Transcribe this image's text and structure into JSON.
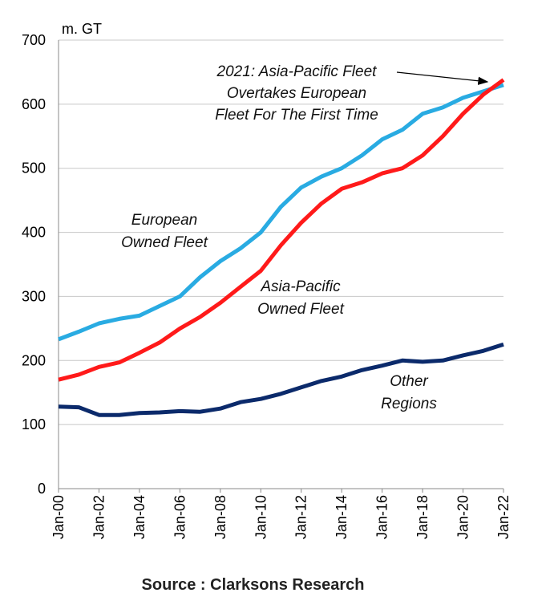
{
  "chart_data": {
    "type": "line",
    "ylabel": "m. GT",
    "ylim": [
      0,
      700
    ],
    "yticks": [
      0,
      100,
      200,
      300,
      400,
      500,
      600,
      700
    ],
    "xlabels": [
      "Jan-00",
      "Jan-02",
      "Jan-04",
      "Jan-06",
      "Jan-08",
      "Jan-10",
      "Jan-12",
      "Jan-14",
      "Jan-16",
      "Jan-18",
      "Jan-20",
      "Jan-22"
    ],
    "x": [
      2000,
      2001,
      2002,
      2003,
      2004,
      2005,
      2006,
      2007,
      2008,
      2009,
      2010,
      2011,
      2012,
      2013,
      2014,
      2015,
      2016,
      2017,
      2018,
      2019,
      2020,
      2021,
      2022
    ],
    "grid": true,
    "series": [
      {
        "name": "European Owned Fleet",
        "label_lines": [
          "European",
          "Owned Fleet"
        ],
        "color": "#29abe2",
        "values": [
          233,
          245,
          258,
          265,
          270,
          285,
          300,
          330,
          355,
          375,
          400,
          440,
          470,
          487,
          500,
          520,
          545,
          560,
          585,
          595,
          610,
          620,
          630
        ]
      },
      {
        "name": "Asia-Pacific Owned Fleet",
        "label_lines": [
          "Asia-Pacific",
          "Owned Fleet"
        ],
        "color": "#ff1a1a",
        "values": [
          170,
          178,
          190,
          197,
          212,
          228,
          250,
          268,
          290,
          315,
          340,
          380,
          415,
          445,
          468,
          478,
          492,
          500,
          520,
          550,
          585,
          615,
          638
        ]
      },
      {
        "name": "Other Regions",
        "label_lines": [
          "Other",
          "Regions"
        ],
        "color": "#0b2a6b",
        "values": [
          128,
          127,
          115,
          115,
          118,
          119,
          121,
          120,
          125,
          135,
          140,
          148,
          158,
          168,
          175,
          185,
          192,
          200,
          198,
          200,
          208,
          215,
          225
        ]
      }
    ],
    "annotation": [
      "2021: Asia-Pacific Fleet",
      "Overtakes European",
      "Fleet For The First Time"
    ]
  },
  "source": "Source : Clarksons Research"
}
